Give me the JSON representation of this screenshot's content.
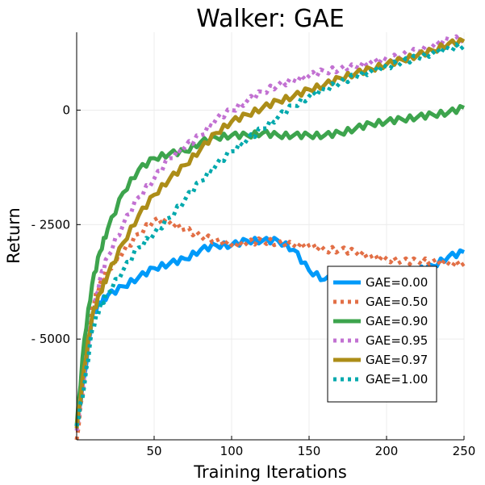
{
  "chart_data": {
    "type": "line",
    "title": "Walker: GAE",
    "xlabel": "Training Iterations",
    "ylabel": "Return",
    "xlim": [
      0,
      250
    ],
    "ylim": [
      -7200,
      1700
    ],
    "xticks": [
      50,
      100,
      150,
      200,
      250
    ],
    "xtick_labels": [
      "50",
      "100",
      "150",
      "200",
      "250"
    ],
    "yticks": [
      0,
      -2500,
      -5000
    ],
    "ytick_labels": [
      "0",
      "- 2500",
      "- 5000"
    ],
    "grid": true,
    "legend_position": "bottom-right",
    "series": [
      {
        "name": "GAE=0.00",
        "color": "#009af9",
        "dash": "solid",
        "x": [
          0,
          5,
          10,
          15,
          20,
          30,
          40,
          50,
          60,
          70,
          80,
          90,
          100,
          110,
          120,
          130,
          140,
          150,
          160,
          170,
          180,
          190,
          200,
          210,
          220,
          230,
          240,
          250
        ],
        "y": [
          -6900,
          -5800,
          -4500,
          -4200,
          -4050,
          -3850,
          -3650,
          -3450,
          -3350,
          -3250,
          -3050,
          -2950,
          -2950,
          -2850,
          -2850,
          -2850,
          -3050,
          -3500,
          -3700,
          -3650,
          -3600,
          -3650,
          -3550,
          -3550,
          -3500,
          -3400,
          -3200,
          -3100
        ]
      },
      {
        "name": "GAE=0.50",
        "color": "#e26f46",
        "dash": "dot",
        "x": [
          0,
          5,
          10,
          15,
          20,
          30,
          40,
          50,
          60,
          70,
          80,
          90,
          100,
          110,
          120,
          130,
          140,
          150,
          160,
          170,
          180,
          190,
          200,
          210,
          220,
          230,
          240,
          250
        ],
        "y": [
          -7200,
          -5800,
          -4300,
          -3800,
          -3500,
          -3100,
          -2700,
          -2400,
          -2450,
          -2600,
          -2750,
          -2850,
          -2950,
          -2900,
          -2850,
          -2900,
          -2950,
          -2950,
          -3050,
          -3050,
          -3100,
          -3200,
          -3250,
          -3300,
          -3300,
          -3300,
          -3350,
          -3350
        ]
      },
      {
        "name": "GAE=0.90",
        "color": "#3da44d",
        "dash": "solid",
        "x": [
          0,
          5,
          10,
          15,
          20,
          30,
          40,
          50,
          60,
          70,
          80,
          90,
          100,
          110,
          120,
          130,
          140,
          150,
          160,
          170,
          180,
          190,
          200,
          210,
          220,
          230,
          240,
          250
        ],
        "y": [
          -6900,
          -5000,
          -3800,
          -3100,
          -2600,
          -1800,
          -1300,
          -1050,
          -950,
          -900,
          -700,
          -600,
          -550,
          -550,
          -500,
          -550,
          -550,
          -550,
          -550,
          -500,
          -400,
          -300,
          -250,
          -200,
          -150,
          -100,
          -50,
          50
        ]
      },
      {
        "name": "GAE=0.95",
        "color": "#c271d2",
        "dash": "dot",
        "x": [
          0,
          5,
          10,
          15,
          20,
          30,
          40,
          50,
          60,
          70,
          80,
          90,
          100,
          110,
          120,
          130,
          140,
          150,
          160,
          170,
          180,
          190,
          200,
          210,
          220,
          230,
          240,
          250
        ],
        "y": [
          -7000,
          -5700,
          -4500,
          -3700,
          -3200,
          -2500,
          -1900,
          -1500,
          -1050,
          -800,
          -550,
          -200,
          0,
          200,
          400,
          550,
          650,
          750,
          850,
          900,
          950,
          1050,
          1100,
          1200,
          1300,
          1400,
          1550,
          1550
        ]
      },
      {
        "name": "GAE=0.97",
        "color": "#ac8d18",
        "dash": "solid",
        "x": [
          0,
          5,
          10,
          15,
          20,
          30,
          40,
          50,
          60,
          70,
          80,
          90,
          100,
          110,
          120,
          130,
          140,
          150,
          160,
          170,
          180,
          190,
          200,
          210,
          220,
          230,
          240,
          250
        ],
        "y": [
          -6950,
          -5600,
          -4500,
          -4000,
          -3600,
          -2900,
          -2300,
          -1850,
          -1500,
          -1200,
          -850,
          -500,
          -250,
          -100,
          50,
          200,
          300,
          450,
          550,
          700,
          800,
          900,
          1000,
          1100,
          1200,
          1300,
          1450,
          1500
        ]
      },
      {
        "name": "GAE=1.00",
        "color": "#00a9ad",
        "dash": "dot",
        "x": [
          0,
          5,
          10,
          15,
          20,
          30,
          40,
          50,
          60,
          70,
          80,
          90,
          100,
          110,
          120,
          130,
          140,
          150,
          160,
          170,
          180,
          190,
          200,
          210,
          220,
          230,
          240,
          250
        ],
        "y": [
          -6900,
          -6000,
          -4800,
          -4300,
          -4000,
          -3500,
          -3000,
          -2700,
          -2350,
          -1950,
          -1550,
          -1200,
          -900,
          -650,
          -400,
          -150,
          100,
          300,
          450,
          600,
          750,
          850,
          950,
          1050,
          1150,
          1250,
          1350,
          1400
        ]
      }
    ]
  }
}
